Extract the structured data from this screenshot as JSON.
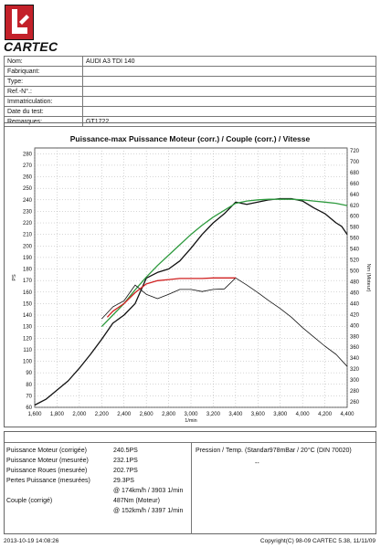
{
  "header": {
    "logo_text": "CARTEC",
    "brand_color": "#c3212a"
  },
  "vehicle_info": [
    {
      "label": "Nom:",
      "value": "AUDI A3 TDI 140"
    },
    {
      "label": "Fabriquant:",
      "value": ""
    },
    {
      "label": "Type:",
      "value": ""
    },
    {
      "label": "Ref.-N°.:",
      "value": ""
    },
    {
      "label": "Immatriculation:",
      "value": ""
    },
    {
      "label": "Date du test:",
      "value": ""
    },
    {
      "label": "Remarques:",
      "value": "GT1722"
    }
  ],
  "chart_data": {
    "type": "line",
    "title": "Puissance-max Puissance Moteur (corr.) / Couple (corr.) / Vitesse",
    "xlabel": "1/min",
    "ylabel": "PS",
    "y2label": "Nm (Moteur)",
    "xlim": [
      1600,
      4400
    ],
    "ylim": [
      60,
      285
    ],
    "y2lim": [
      250,
      725
    ],
    "x_ticks": [
      1600,
      1800,
      2000,
      2200,
      2400,
      2600,
      2800,
      3000,
      3200,
      3400,
      3600,
      3800,
      4000,
      4200,
      4400
    ],
    "x_tick_labels": [
      "1,600",
      "1,800",
      "2,000",
      "2,200",
      "2,400",
      "2,600",
      "2,800",
      "3,000",
      "3,200",
      "3,400",
      "3,600",
      "3,800",
      "4,000",
      "4,200",
      "4,400"
    ],
    "y_ticks": [
      60,
      70,
      80,
      90,
      100,
      110,
      120,
      130,
      140,
      150,
      160,
      170,
      180,
      190,
      200,
      210,
      220,
      230,
      240,
      250,
      260,
      270,
      280
    ],
    "y2_ticks": [
      260,
      280,
      300,
      320,
      340,
      360,
      380,
      400,
      420,
      440,
      460,
      480,
      500,
      520,
      540,
      560,
      580,
      600,
      620,
      640,
      660,
      680,
      700,
      720
    ],
    "grid": true,
    "series": [
      {
        "name": "",
        "axis": "left",
        "color": "#111111",
        "width": 1.3,
        "x": [
          1600,
          1700,
          1800,
          1900,
          2000,
          2100,
          2200,
          2300,
          2400,
          2500,
          2600,
          2700,
          2800,
          2900,
          3000,
          3100,
          3200,
          3300,
          3400,
          3500,
          3600,
          3700,
          3800,
          3900,
          4000,
          4100,
          4200,
          4300,
          4350,
          4400
        ],
        "values": [
          62,
          67,
          75,
          83,
          94,
          106,
          119,
          133,
          140,
          150,
          172,
          177,
          180,
          187,
          198,
          210,
          220,
          228,
          238,
          236,
          238,
          240,
          241,
          241,
          239,
          233,
          228,
          220,
          217,
          210
        ]
      },
      {
        "name": "",
        "axis": "left",
        "color": "#2e9a3e",
        "width": 1.3,
        "x": [
          2200,
          2300,
          2400,
          2500,
          2600,
          2700,
          2800,
          2900,
          3000,
          3100,
          3200,
          3300,
          3400,
          3500,
          3600,
          3700,
          3800,
          3900,
          4000,
          4100,
          4200,
          4300,
          4400
        ],
        "values": [
          130,
          140,
          150,
          162,
          173,
          183,
          192,
          201,
          210,
          218,
          225,
          231,
          237,
          239,
          240,
          240.5,
          240.5,
          240.5,
          240,
          239,
          238,
          237,
          235
        ]
      },
      {
        "name": "",
        "axis": "right",
        "color": "#111111",
        "width": 0.8,
        "x": [
          2200,
          2300,
          2400,
          2500,
          2600,
          2700,
          2800,
          2900,
          3000,
          3100,
          3200,
          3300,
          3400,
          3500,
          3600,
          3700,
          3800,
          3900,
          4000,
          4100,
          4200,
          4300,
          4400
        ],
        "values": [
          412,
          434,
          445,
          474,
          457,
          449,
          457,
          466,
          466,
          462,
          466,
          467,
          487,
          474,
          460,
          445,
          431,
          415,
          396,
          379,
          362,
          347,
          325
        ]
      },
      {
        "name": "",
        "axis": "right",
        "color": "#d02020",
        "width": 1.3,
        "x": [
          2250,
          2300,
          2400,
          2500,
          2600,
          2700,
          2800,
          2900,
          3000,
          3100,
          3200,
          3300,
          3400
        ],
        "values": [
          415,
          426,
          440,
          460,
          476,
          482,
          484,
          486,
          486,
          486,
          487,
          487,
          487
        ]
      }
    ]
  },
  "results": {
    "rows": [
      {
        "label": "Puissance Moteur (corrigée)",
        "value": "240.5PS"
      },
      {
        "label": "Puissance Moteur (mesurée)",
        "value": "232.1PS"
      },
      {
        "label": "Puissance Roues (mesurée)",
        "value": "202.7PS"
      },
      {
        "label": "Pertes Puissance (mesurées)",
        "value": "29.3PS"
      },
      {
        "label": "",
        "value": "@ 174km/h / 3903 1/min"
      },
      {
        "label": "Couple (corrigé)",
        "value": "487Nm (Moteur)"
      },
      {
        "label": "",
        "value": "@ 152km/h / 3397 1/min"
      }
    ],
    "conditions_label": "Pression / Temp. (Standar978mBar / 20°C   (DIN 70020)",
    "conditions_value": "--"
  },
  "footer": {
    "timestamp": "2013-10-19 14:08:26",
    "copyright": "Copyright(C) 98-09 CARTEC 5.38, 11/11/09"
  }
}
